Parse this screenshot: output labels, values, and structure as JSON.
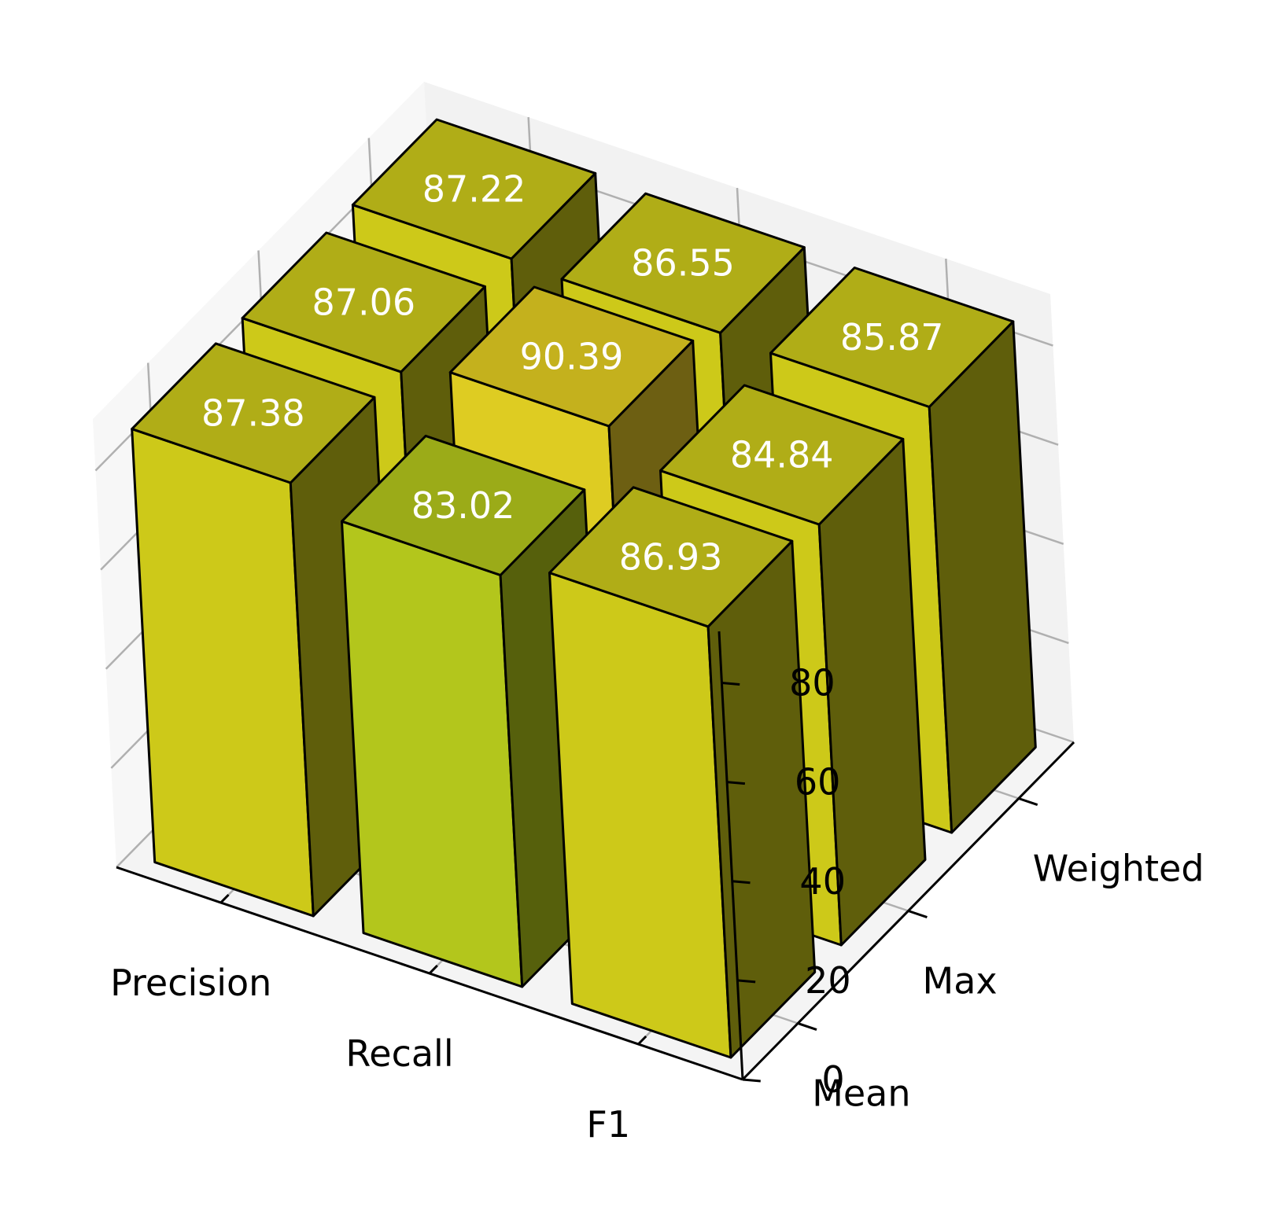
{
  "chart_data": {
    "type": "bar3d",
    "x_categories": [
      "Precision",
      "Recall",
      "F1"
    ],
    "y_categories": [
      "Mean",
      "Max",
      "Weighted"
    ],
    "values": [
      [
        87.38,
        87.06,
        87.22
      ],
      [
        83.02,
        90.39,
        86.55
      ],
      [
        86.93,
        84.84,
        85.87
      ]
    ],
    "z_ticks": [
      0,
      20,
      40,
      60,
      80
    ],
    "zlim": [
      0,
      90.39
    ],
    "grid": true,
    "colors": {
      "default_top": "#b0ad17",
      "default_front": "#cdc919",
      "default_side": "#5f5e0b",
      "low_top": "#9bab18",
      "low_front": "#b3c61c",
      "low_side": "#56600c",
      "high_top": "#c4b11d",
      "high_front": "#decc22",
      "high_side": "#6d5f12",
      "edge": "#000000",
      "pane": "#f2f2f2",
      "grid": "#b0b0b0"
    }
  }
}
